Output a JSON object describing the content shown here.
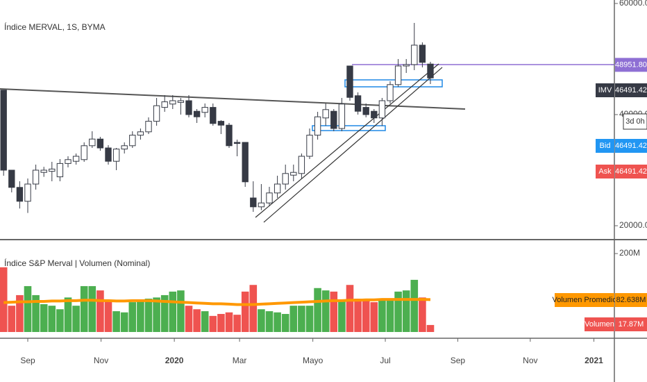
{
  "chart_data": [
    {
      "type": "candlestick",
      "title": "Índice MERVAL, 1S, BYMA",
      "x": [
        -3,
        -2,
        -1,
        0,
        1,
        2,
        3,
        4,
        5,
        6,
        7,
        8,
        9,
        10,
        11,
        12,
        13,
        14,
        15,
        16,
        17,
        18,
        19,
        20,
        21,
        22,
        23,
        24,
        25,
        26,
        27,
        28,
        29,
        30,
        31,
        32,
        33,
        34,
        35,
        36,
        37,
        38,
        39,
        40,
        41,
        42,
        43,
        44,
        45,
        46,
        47,
        48,
        49,
        50
      ],
      "open": [
        44400,
        30000,
        26900,
        24400,
        27500,
        29600,
        29800,
        28800,
        31200,
        31600,
        31900,
        34400,
        35600,
        34000,
        31600,
        33800,
        34400,
        36300,
        36900,
        38800,
        41300,
        41900,
        42200,
        42500,
        40600,
        40400,
        41300,
        38800,
        38100,
        35000,
        35000,
        25000,
        23400,
        24100,
        25900,
        27500,
        29100,
        29400,
        32500,
        36300,
        39400,
        40600,
        37500,
        48750,
        43400,
        41300,
        40600,
        39400,
        42500,
        45400,
        48750,
        49000,
        52500,
        49100
      ],
      "high": [
        44400,
        30000,
        28000,
        28500,
        31000,
        30600,
        31500,
        32000,
        32500,
        33000,
        35000,
        37000,
        36000,
        34500,
        34000,
        35000,
        37000,
        37500,
        39500,
        43000,
        43500,
        43500,
        43000,
        43500,
        41000,
        42000,
        42000,
        39000,
        38500,
        35500,
        35000,
        28000,
        27500,
        27000,
        29000,
        31000,
        31000,
        33000,
        37500,
        40500,
        42000,
        41000,
        43000,
        48750,
        44000,
        42000,
        41000,
        43000,
        46000,
        50000,
        50000,
        56500,
        53000,
        49500
      ],
      "low": [
        29000,
        26000,
        23100,
        22300,
        26500,
        28800,
        28000,
        28000,
        30500,
        31000,
        31500,
        34000,
        33500,
        31000,
        30000,
        33000,
        34000,
        35500,
        36500,
        38000,
        40500,
        41000,
        40000,
        39500,
        38500,
        39500,
        38000,
        36500,
        34000,
        32500,
        27000,
        22500,
        22800,
        23500,
        25000,
        26500,
        28000,
        28500,
        32000,
        35500,
        38000,
        37000,
        37000,
        42500,
        40000,
        39500,
        38500,
        38000,
        42000,
        45000,
        47500,
        48000,
        48500,
        45500
      ],
      "close": [
        30000,
        26900,
        24400,
        27500,
        30000,
        30000,
        30200,
        31200,
        31900,
        32500,
        34400,
        35600,
        34000,
        31600,
        33800,
        34400,
        36300,
        36900,
        38800,
        41600,
        42300,
        42500,
        42500,
        40000,
        39600,
        41300,
        38400,
        38100,
        34400,
        34800,
        27900,
        23400,
        24100,
        25900,
        27500,
        29400,
        29600,
        32500,
        36300,
        39600,
        40900,
        37500,
        41900,
        43100,
        40600,
        40000,
        39400,
        42500,
        45400,
        48750,
        49000,
        52500,
        49400,
        46600
      ],
      "up_color": "#ffffff",
      "down_color": "#363a45",
      "outline_color": "#363a45",
      "xlim": [
        -3.448,
        72.845
      ],
      "ylim": [
        17500,
        60625
      ],
      "xticks": [
        {
          "value": 0,
          "label": "Sep"
        },
        {
          "value": 9.1,
          "label": "Nov"
        },
        {
          "value": 18.2,
          "label": "2020"
        },
        {
          "value": 26.3,
          "label": "Mar"
        },
        {
          "value": 35.4,
          "label": "Mayo"
        },
        {
          "value": 44.4,
          "label": "Jul"
        },
        {
          "value": 53.4,
          "label": "Sep"
        },
        {
          "value": 62.4,
          "label": "Nov"
        },
        {
          "value": 70.3,
          "label": "2021"
        }
      ],
      "yticks": [
        {
          "value": 20000,
          "label": "20000.00"
        },
        {
          "value": 40000,
          "label": "40000.00"
        },
        {
          "value": 60000,
          "label": "60000.00"
        }
      ],
      "last_price": {
        "value": 48951.8,
        "label": "48951.80",
        "color": "#8e6fd4"
      },
      "tags": [
        {
          "name": "IMV",
          "value": 46491.42,
          "color": "#363a45"
        },
        {
          "name": "Bid",
          "value": 46491.42,
          "color": "#2196f3"
        },
        {
          "name": "Ask",
          "value": 46491.42,
          "color": "#ef5350"
        }
      ],
      "countdown": "3d 0h"
    },
    {
      "type": "volume",
      "title": "Índice S&P Merval | Volumen (Nominal)",
      "series": [
        {
          "name": "Volumen",
          "values": [
            165,
            67,
            94,
            117,
            94,
            71,
            67,
            58,
            88,
            67,
            117,
            117,
            106,
            80,
            53,
            50,
            76,
            80,
            85,
            88,
            94,
            103,
            106,
            67,
            58,
            53,
            41,
            46,
            50,
            44,
            103,
            120,
            58,
            53,
            50,
            46,
            67,
            67,
            67,
            112,
            106,
            103,
            81,
            120,
            85,
            85,
            76,
            85,
            85,
            103,
            106,
            133,
            88,
            17.87
          ],
          "up_color": "#4caf50",
          "down_color": "#ef5350"
        },
        {
          "name": "Volumen Promedio",
          "color": "#ff9800",
          "values": [
            75,
            76,
            77,
            77,
            78,
            78,
            79,
            79,
            80,
            80,
            81,
            81,
            80,
            80,
            79,
            79,
            80,
            80,
            80,
            79,
            78,
            77,
            76,
            75,
            74,
            73,
            72,
            72,
            71,
            70,
            70,
            70,
            71,
            72,
            73,
            74,
            75,
            76,
            77,
            78,
            79,
            80,
            80,
            81,
            81,
            82,
            82,
            83,
            83,
            83,
            83,
            83,
            83,
            82.638
          ]
        }
      ],
      "ylim": [
        0,
        232
      ],
      "yticks": [
        {
          "value": 200,
          "label": "200M"
        }
      ],
      "tags": [
        {
          "name": "Volumen Promedio",
          "value": 82.638,
          "label": "82.638M",
          "color": "#ff9800"
        },
        {
          "name": "Volumen",
          "value": 17.87,
          "label": "17.87M",
          "color": "#ef5350"
        }
      ]
    }
  ]
}
